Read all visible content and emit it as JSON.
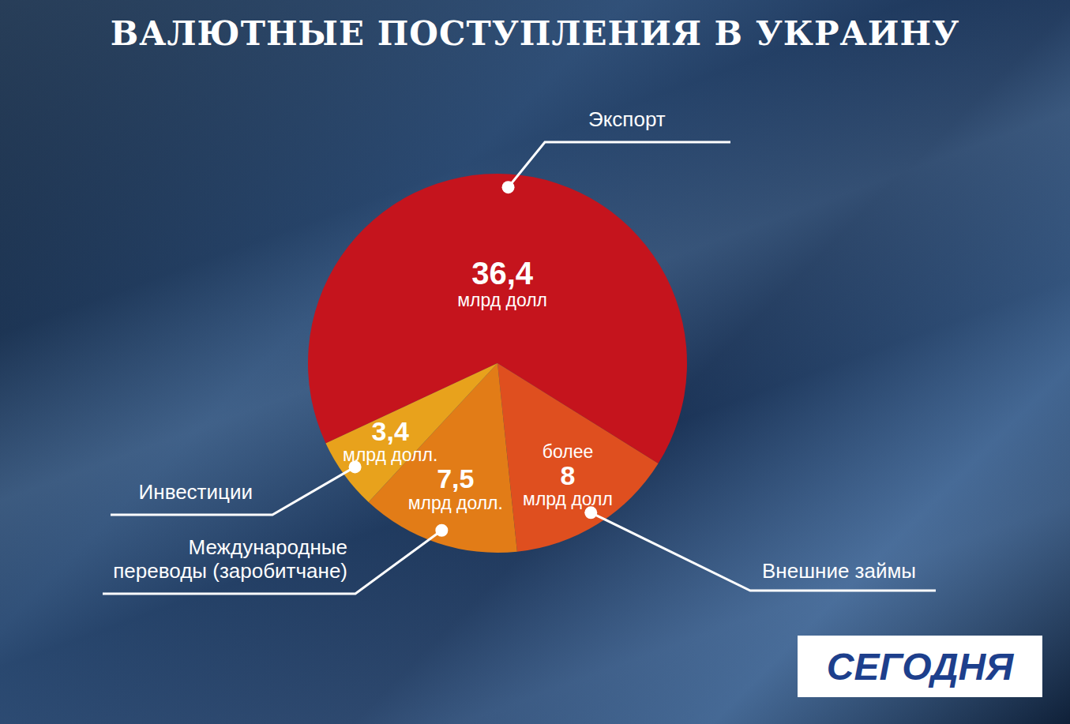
{
  "source": "СЕГОДНЯ",
  "chart_data": {
    "type": "pie",
    "title": "ВАЛЮТНЫЕ ПОСТУПЛЕНИЯ В УКРАИНУ",
    "categories": [
      "Экспорт",
      "Внешние займы",
      "Международные переводы (заробитчане)",
      "Инвестиции"
    ],
    "values": [
      36.4,
      8,
      7.5,
      3.4
    ],
    "value_labels": [
      "36,4",
      "8",
      "7,5",
      "3,4"
    ],
    "value_prefixes": [
      null,
      "более",
      null,
      null
    ],
    "value_units": [
      "млрд долл",
      "млрд долл",
      "млрд долл.",
      "млрд долл."
    ],
    "colors": [
      "#c5141d",
      "#df4f1f",
      "#e27c17",
      "#e8a21c"
    ],
    "data_labels": true
  }
}
